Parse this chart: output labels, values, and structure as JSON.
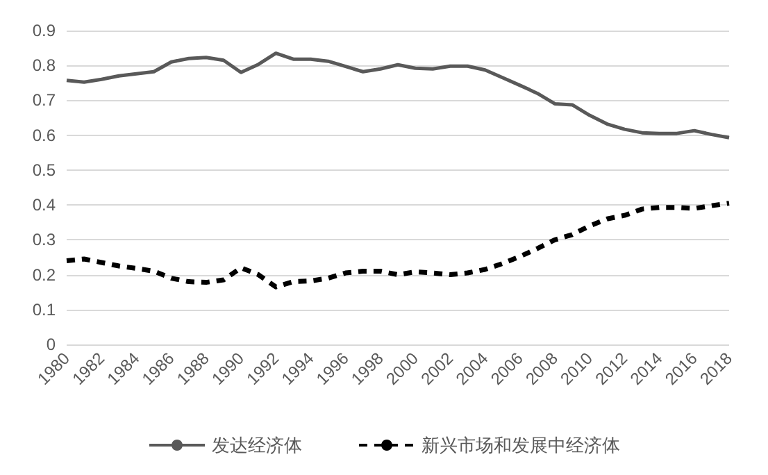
{
  "chart_data": {
    "type": "line",
    "categories": [
      "1980",
      null,
      "1982",
      null,
      "1984",
      null,
      "1986",
      null,
      "1988",
      null,
      "1990",
      null,
      "1992",
      null,
      "1994",
      null,
      "1996",
      null,
      "1998",
      null,
      "2000",
      null,
      "2002",
      null,
      "2004",
      null,
      "2006",
      null,
      "2008",
      null,
      "2010",
      null,
      "2012",
      null,
      "2014",
      null,
      "2016",
      null,
      "2018"
    ],
    "series": [
      {
        "name": "发达经济体",
        "color": "#595959",
        "line_style": "solid",
        "values": [
          0.757,
          0.752,
          0.76,
          0.77,
          0.776,
          0.782,
          0.81,
          0.82,
          0.823,
          0.815,
          0.78,
          0.803,
          0.835,
          0.818,
          0.818,
          0.812,
          0.797,
          0.782,
          0.79,
          0.802,
          0.792,
          0.79,
          0.798,
          0.798,
          0.787,
          0.765,
          0.743,
          0.72,
          0.69,
          0.687,
          0.657,
          0.632,
          0.617,
          0.607,
          0.605,
          0.605,
          0.613,
          0.602,
          0.593
        ]
      },
      {
        "name": "新兴市场和发展中经济体",
        "color": "#000000",
        "line_style": "dashed",
        "values": [
          0.24,
          0.245,
          0.235,
          0.225,
          0.218,
          0.21,
          0.19,
          0.18,
          0.178,
          0.185,
          0.22,
          0.2,
          0.165,
          0.18,
          0.182,
          0.19,
          0.205,
          0.21,
          0.21,
          0.2,
          0.208,
          0.205,
          0.2,
          0.205,
          0.215,
          0.232,
          0.252,
          0.275,
          0.3,
          0.315,
          0.34,
          0.36,
          0.37,
          0.388,
          0.393,
          0.393,
          0.39,
          0.398,
          0.405
        ]
      }
    ],
    "ylim": [
      0,
      0.9
    ],
    "yticks": [
      0,
      0.1,
      0.2,
      0.3,
      0.4,
      0.5,
      0.6,
      0.7,
      0.8,
      0.9
    ],
    "grid": "y",
    "legend": "bottom",
    "marker": "none"
  }
}
